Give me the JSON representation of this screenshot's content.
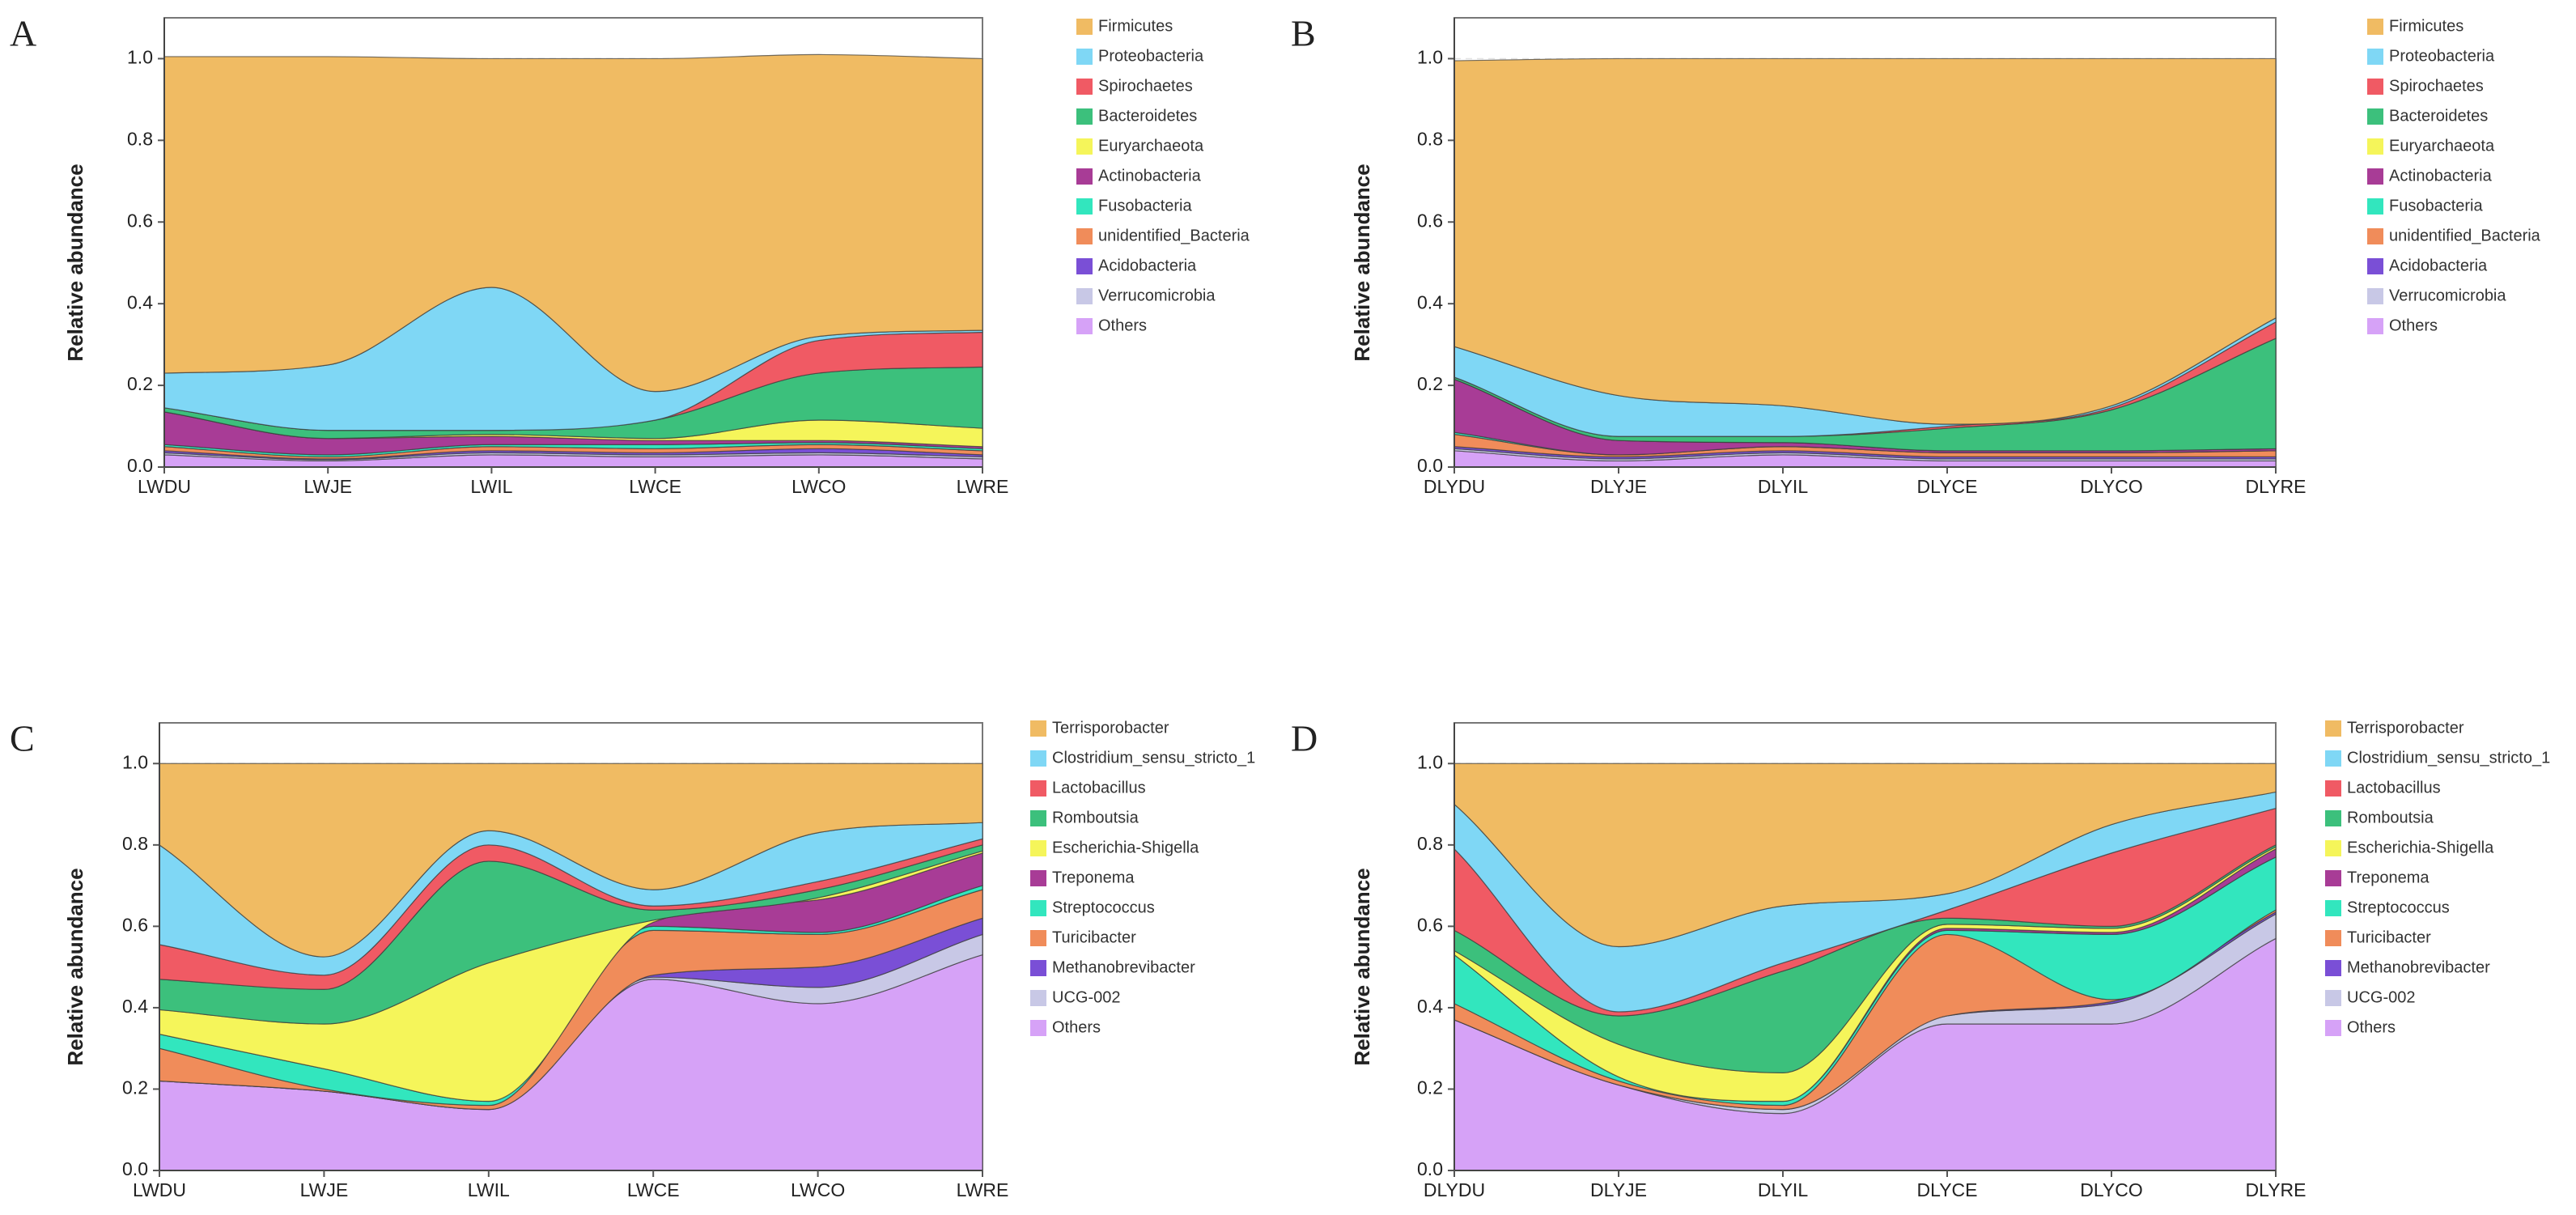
{
  "chart_data": [
    {
      "type": "stacked-area",
      "label": "A",
      "ylabel": "Relative abundance",
      "categories": [
        "LWDU",
        "LWJE",
        "LWIL",
        "LWCE",
        "LWCO",
        "LWRE"
      ],
      "ylim": [
        0,
        1.1
      ],
      "yticks": [
        {
          "value": 0,
          "label": "0.0"
        },
        0.2,
        0.4,
        0.6,
        0.8,
        {
          "value": 1,
          "label": "1.0"
        }
      ],
      "grid": true,
      "series": [
        {
          "name": "Firmicutes",
          "color": "#f0bb63",
          "values": [
            0.775,
            0.755,
            0.56,
            0.815,
            0.69,
            0.665
          ]
        },
        {
          "name": "Proteobacteria",
          "color": "#7fd7f5",
          "values": [
            0.085,
            0.16,
            0.35,
            0.07,
            0.01,
            0.005
          ]
        },
        {
          "name": "Spirochaetes",
          "color": "#f05a64",
          "values": [
            0,
            0,
            0,
            0,
            0.08,
            0.085
          ]
        },
        {
          "name": "Bacteroidetes",
          "color": "#3cc07c",
          "values": [
            0.01,
            0.02,
            0.01,
            0.045,
            0.115,
            0.15
          ]
        },
        {
          "name": "Euryarchaeota",
          "color": "#f5f55a",
          "values": [
            0,
            0,
            0.005,
            0.005,
            0.05,
            0.045
          ]
        },
        {
          "name": "Actinobacteria",
          "color": "#a83c96",
          "values": [
            0.08,
            0.04,
            0.02,
            0.01,
            0.005,
            0.005
          ]
        },
        {
          "name": "Fusobacteria",
          "color": "#32e6be",
          "values": [
            0.005,
            0.005,
            0.005,
            0.01,
            0.005,
            0.005
          ]
        },
        {
          "name": "unidentified_Bacteria",
          "color": "#f08c5a",
          "values": [
            0.01,
            0.005,
            0.01,
            0.01,
            0.01,
            0.01
          ]
        },
        {
          "name": "Acidobacteria",
          "color": "#7a4fd6",
          "values": [
            0.005,
            0.002,
            0.005,
            0.005,
            0.01,
            0.005
          ]
        },
        {
          "name": "Verrucomicrobia",
          "color": "#c8c8e6",
          "values": [
            0.005,
            0.003,
            0.005,
            0.005,
            0.005,
            0.005
          ]
        },
        {
          "name": "Others",
          "color": "#d6a2f7",
          "values": [
            0.03,
            0.015,
            0.03,
            0.025,
            0.03,
            0.02
          ]
        }
      ]
    },
    {
      "type": "stacked-area",
      "label": "B",
      "ylabel": "Relative abundance",
      "categories": [
        "DLYDU",
        "DLYJE",
        "DLYIL",
        "DLYCE",
        "DLYCO",
        "DLYRE"
      ],
      "ylim": [
        0,
        1.1
      ],
      "yticks": [
        {
          "value": 0,
          "label": "0.0"
        },
        0.2,
        0.4,
        0.6,
        0.8,
        {
          "value": 1,
          "label": "1.0"
        }
      ],
      "grid": true,
      "series": [
        {
          "name": "Firmicutes",
          "color": "#f0bb63",
          "values": [
            0.7,
            0.825,
            0.85,
            0.895,
            0.85,
            0.635
          ]
        },
        {
          "name": "Proteobacteria",
          "color": "#7fd7f5",
          "values": [
            0.075,
            0.1,
            0.075,
            0.005,
            0.005,
            0.01
          ]
        },
        {
          "name": "Spirochaetes",
          "color": "#f05a64",
          "values": [
            0,
            0,
            0,
            0.005,
            0.005,
            0.04
          ]
        },
        {
          "name": "Bacteroidetes",
          "color": "#3cc07c",
          "values": [
            0.005,
            0.01,
            0.015,
            0.055,
            0.1,
            0.27
          ]
        },
        {
          "name": "Euryarchaeota",
          "color": "#f5f55a",
          "values": [
            0,
            0,
            0,
            0,
            0,
            0
          ]
        },
        {
          "name": "Actinobacteria",
          "color": "#a83c96",
          "values": [
            0.13,
            0.035,
            0.01,
            0.005,
            0.005,
            0.005
          ]
        },
        {
          "name": "Fusobacteria",
          "color": "#32e6be",
          "values": [
            0.005,
            0,
            0,
            0,
            0,
            0
          ]
        },
        {
          "name": "unidentified_Bacteria",
          "color": "#f08c5a",
          "values": [
            0.03,
            0.005,
            0.01,
            0.01,
            0.01,
            0.015
          ]
        },
        {
          "name": "Acidobacteria",
          "color": "#7a4fd6",
          "values": [
            0.005,
            0.005,
            0.005,
            0.005,
            0.005,
            0.005
          ]
        },
        {
          "name": "Verrucomicrobia",
          "color": "#c8c8e6",
          "values": [
            0.005,
            0.005,
            0.005,
            0.005,
            0.005,
            0.005
          ]
        },
        {
          "name": "Others",
          "color": "#d6a2f7",
          "values": [
            0.04,
            0.015,
            0.03,
            0.015,
            0.015,
            0.015
          ]
        }
      ]
    },
    {
      "type": "stacked-area",
      "label": "C",
      "ylabel": "Relative abundance",
      "categories": [
        "LWDU",
        "LWJE",
        "LWIL",
        "LWCE",
        "LWCO",
        "LWRE"
      ],
      "ylim": [
        0,
        1.1
      ],
      "yticks": [
        {
          "value": 0,
          "label": "0.0"
        },
        0.2,
        0.4,
        0.6,
        0.8,
        {
          "value": 1,
          "label": "1.0"
        }
      ],
      "grid": true,
      "series": [
        {
          "name": "Terrisporobacter",
          "color": "#f0bb63",
          "values": [
            0.2,
            0.475,
            0.165,
            0.31,
            0.17,
            0.145
          ]
        },
        {
          "name": "Clostridium_sensu_stricto_1",
          "color": "#7fd7f5",
          "values": [
            0.245,
            0.045,
            0.035,
            0.04,
            0.12,
            0.04
          ]
        },
        {
          "name": "Lactobacillus",
          "color": "#f05a64",
          "values": [
            0.085,
            0.035,
            0.04,
            0.01,
            0.02,
            0.015
          ]
        },
        {
          "name": "Romboutsia",
          "color": "#3cc07c",
          "values": [
            0.075,
            0.085,
            0.25,
            0.025,
            0.02,
            0.015
          ]
        },
        {
          "name": "Escherichia-Shigella",
          "color": "#f5f55a",
          "values": [
            0.06,
            0.11,
            0.34,
            0.005,
            0.005,
            0.005
          ]
        },
        {
          "name": "Treponema",
          "color": "#a83c96",
          "values": [
            0,
            0,
            0,
            0.01,
            0.08,
            0.08
          ]
        },
        {
          "name": "Streptococcus",
          "color": "#32e6be",
          "values": [
            0.035,
            0.05,
            0.01,
            0.01,
            0.005,
            0.01
          ]
        },
        {
          "name": "Turicibacter",
          "color": "#f08c5a",
          "values": [
            0.08,
            0.005,
            0.01,
            0.11,
            0.08,
            0.07
          ]
        },
        {
          "name": "Methanobrevibacter",
          "color": "#7a4fd6",
          "values": [
            0,
            0,
            0,
            0.005,
            0.05,
            0.04
          ]
        },
        {
          "name": "UCG-002",
          "color": "#c8c8e6",
          "values": [
            0,
            0,
            0,
            0.005,
            0.04,
            0.05
          ]
        },
        {
          "name": "Others",
          "color": "#d6a2f7",
          "values": [
            0.22,
            0.195,
            0.15,
            0.47,
            0.41,
            0.53
          ]
        }
      ]
    },
    {
      "type": "stacked-area",
      "label": "D",
      "ylabel": "Relative abundance",
      "categories": [
        "DLYDU",
        "DLYJE",
        "DLYIL",
        "DLYCE",
        "DLYCO",
        "DLYRE"
      ],
      "ylim": [
        0,
        1.1
      ],
      "yticks": [
        {
          "value": 0,
          "label": "0.0"
        },
        0.2,
        0.4,
        0.6,
        0.8,
        {
          "value": 1,
          "label": "1.0"
        }
      ],
      "grid": true,
      "series": [
        {
          "name": "Terrisporobacter",
          "color": "#f0bb63",
          "values": [
            0.1,
            0.45,
            0.35,
            0.32,
            0.15,
            0.07
          ]
        },
        {
          "name": "Clostridium_sensu_stricto_1",
          "color": "#7fd7f5",
          "values": [
            0.11,
            0.16,
            0.14,
            0.04,
            0.07,
            0.04
          ]
        },
        {
          "name": "Lactobacillus",
          "color": "#f05a64",
          "values": [
            0.2,
            0.01,
            0.02,
            0.02,
            0.18,
            0.09
          ]
        },
        {
          "name": "Romboutsia",
          "color": "#3cc07c",
          "values": [
            0.05,
            0.07,
            0.25,
            0.015,
            0.005,
            0.005
          ]
        },
        {
          "name": "Escherichia-Shigella",
          "color": "#f5f55a",
          "values": [
            0.01,
            0.08,
            0.07,
            0.01,
            0.01,
            0.005
          ]
        },
        {
          "name": "Treponema",
          "color": "#a83c96",
          "values": [
            0,
            0,
            0,
            0.005,
            0.005,
            0.02
          ]
        },
        {
          "name": "Streptococcus",
          "color": "#32e6be",
          "values": [
            0.12,
            0.01,
            0.01,
            0.01,
            0.16,
            0.13
          ]
        },
        {
          "name": "Turicibacter",
          "color": "#f08c5a",
          "values": [
            0.04,
            0.01,
            0.01,
            0.2,
            0.005,
            0.005
          ]
        },
        {
          "name": "Methanobrevibacter",
          "color": "#7a4fd6",
          "values": [
            0,
            0,
            0,
            0,
            0.005,
            0.005
          ]
        },
        {
          "name": "UCG-002",
          "color": "#c8c8e6",
          "values": [
            0,
            0,
            0.01,
            0.02,
            0.05,
            0.06
          ]
        },
        {
          "name": "Others",
          "color": "#d6a2f7",
          "values": [
            0.37,
            0.21,
            0.14,
            0.36,
            0.36,
            0.57
          ]
        }
      ]
    }
  ]
}
